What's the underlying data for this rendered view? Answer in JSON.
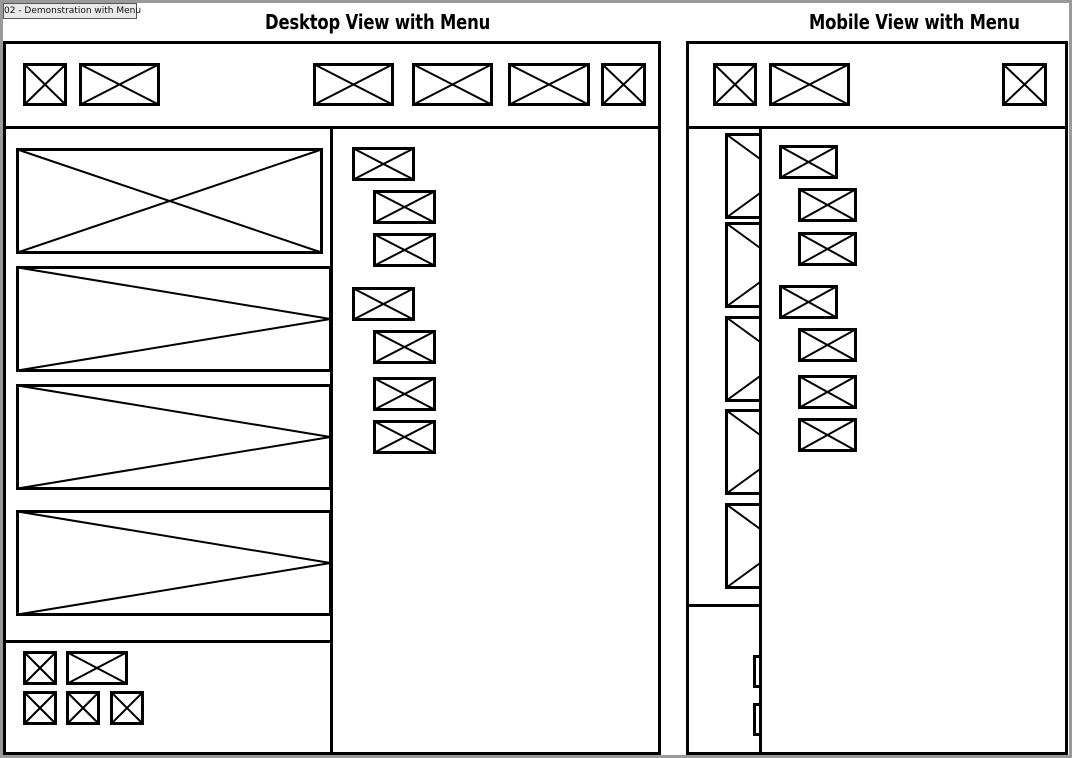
{
  "tab": {
    "label": "02 - Demonstration with Menu"
  },
  "desktop": {
    "title": "Desktop View with Menu"
  },
  "mobile": {
    "title": "Mobile View with Menu"
  },
  "colors": {
    "stroke": "#000000",
    "frame": "#9a9a9a",
    "tab_bg": "#e9e9e9",
    "background": "#ffffff"
  },
  "icons": {
    "placeholder": "image-placeholder-icon"
  }
}
